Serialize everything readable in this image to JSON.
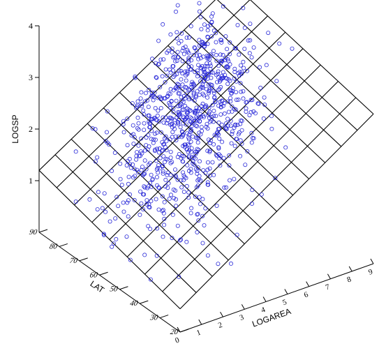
{
  "chart_data": {
    "type": "scatter",
    "title": "",
    "projection": "3d",
    "axes": {
      "z": {
        "label": "LOGSP",
        "ticks": [
          "1",
          "2",
          "3",
          "4"
        ],
        "range": [
          0,
          4
        ]
      },
      "lat": {
        "label": "LAT",
        "ticks": [
          "20",
          "30",
          "40",
          "50",
          "60",
          "70",
          "80",
          "90"
        ],
        "range": [
          20,
          90
        ]
      },
      "x": {
        "label": "LOGAREA",
        "ticks": [
          "0",
          "1",
          "2",
          "3",
          "4",
          "5",
          "6",
          "7",
          "8",
          "9"
        ],
        "range": [
          0,
          9
        ]
      }
    },
    "surface": {
      "type": "fitted-plane-wireframe",
      "corner_values": {
        "x0_lat90": 1.2,
        "x9_lat90": 3.5,
        "x0_lat20": 0.45,
        "x9_lat20": 2.9
      },
      "grid_x_lines": 13,
      "grid_lat_lines": 9
    },
    "points": {
      "marker": "open-circle",
      "color": "#2a2ad8",
      "approx_count": 900,
      "clusters": [
        {
          "center_logarea": 5.2,
          "center_lat": 68,
          "center_logsp": 2.2,
          "spread_logarea": 1.3,
          "spread_lat": 9,
          "spread_logsp": 0.4,
          "weight": 0.55
        },
        {
          "center_logarea": 3.2,
          "center_lat": 58,
          "center_logsp": 1.7,
          "spread_logarea": 1.4,
          "spread_lat": 12,
          "spread_logsp": 0.45,
          "weight": 0.35
        },
        {
          "center_logarea": 6.5,
          "center_lat": 80,
          "center_logsp": 3.0,
          "spread_logarea": 1.0,
          "spread_lat": 6,
          "spread_logsp": 0.4,
          "weight": 0.1
        }
      ]
    },
    "grid": false,
    "legend": "none"
  },
  "colors": {
    "axis": "#000000",
    "surface": "#000000",
    "points": "#2a2ad8"
  }
}
